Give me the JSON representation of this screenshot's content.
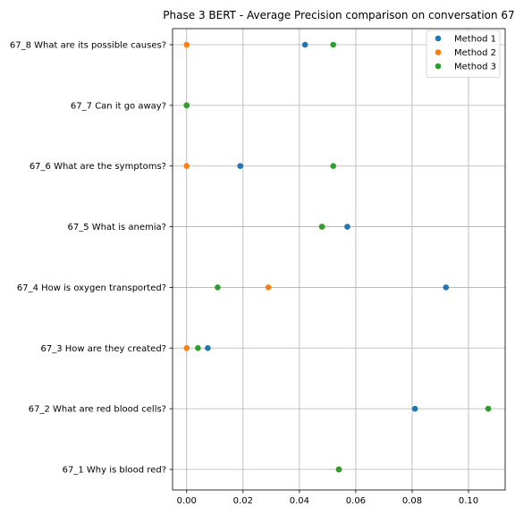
{
  "chart_data": {
    "type": "scatter",
    "title": "Phase 3 BERT - Average Precision comparison on conversation 67",
    "xlabel": "",
    "ylabel": "",
    "xlim": [
      -0.005,
      0.113
    ],
    "xticks": [
      "0.00",
      "0.02",
      "0.04",
      "0.06",
      "0.08",
      "0.10"
    ],
    "grid": true,
    "legend_position": "top-right",
    "categories": [
      "67_1 Why is blood red?",
      "67_2 What are red blood cells?",
      "67_3 How are they created?",
      "67_4 How is oxygen transported?",
      "67_5 What is anemia?",
      "67_6 What are the symptoms?",
      "67_7 Can it go away?",
      "67_8 What are its possible causes?"
    ],
    "series": [
      {
        "name": "Method 1",
        "color": "#1f77b4",
        "values": [
          0.054,
          0.081,
          0.0075,
          0.092,
          0.057,
          0.019,
          0.0,
          0.042
        ]
      },
      {
        "name": "Method 2",
        "color": "#ff7f0e",
        "values": [
          0.054,
          0.107,
          0.0,
          0.029,
          0.048,
          0.0,
          0.0,
          0.0
        ]
      },
      {
        "name": "Method 3",
        "color": "#2ca02c",
        "values": [
          0.054,
          0.107,
          0.004,
          0.011,
          0.048,
          0.052,
          0.0,
          0.052
        ]
      }
    ]
  }
}
